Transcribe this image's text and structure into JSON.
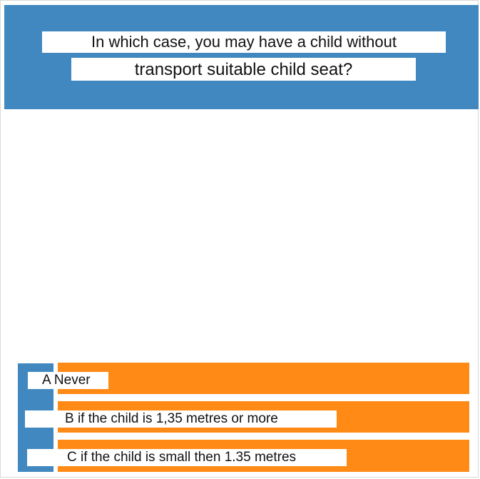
{
  "question": {
    "line1": "In which case, you may have a child without",
    "line2": "transport suitable child seat?"
  },
  "answers": [
    {
      "text": "A Never"
    },
    {
      "text": "B if the child is 1,35 metres or more"
    },
    {
      "text": "C if the child is small then 1.35 metres"
    }
  ],
  "colors": {
    "header_bg": "#4088bf",
    "answer_bar": "#ff8a16",
    "answer_side_bar": "#4088bf"
  }
}
